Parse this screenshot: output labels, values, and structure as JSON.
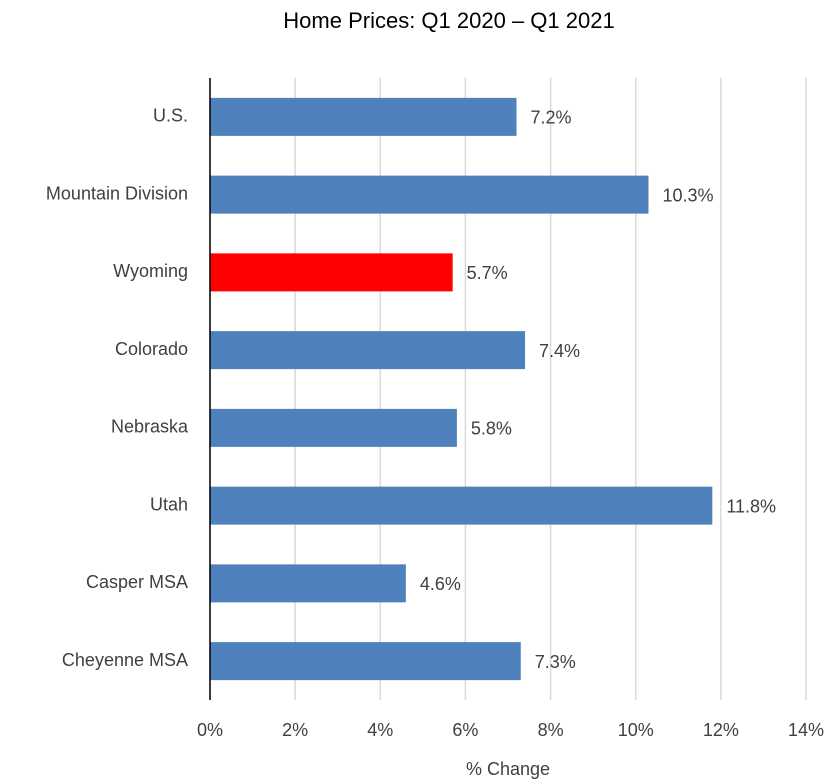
{
  "chart_data": {
    "type": "hbar",
    "title": "Home Prices: Q1 2020 – Q1 2021",
    "x_label": "% Change",
    "categories": [
      "U.S.",
      "Mountain Division",
      "Wyoming",
      "Colorado",
      "Nebraska",
      "Utah",
      "Casper MSA",
      "Cheyenne MSA"
    ],
    "values": [
      7.2,
      10.3,
      5.7,
      7.4,
      5.8,
      11.8,
      4.6,
      7.3
    ],
    "value_labels": [
      "7.2%",
      "10.3%",
      "5.7%",
      "7.4%",
      "5.8%",
      "11.8%",
      "4.6%",
      "7.3%"
    ],
    "colors": [
      "#4f81bd",
      "#4f81bd",
      "#ff0000",
      "#4f81bd",
      "#4f81bd",
      "#4f81bd",
      "#4f81bd",
      "#4f81bd"
    ],
    "xlim": [
      0,
      14
    ],
    "xticks": [
      {
        "value": 0,
        "label": "0%"
      },
      {
        "value": 2,
        "label": "2%"
      },
      {
        "value": 4,
        "label": "4%"
      },
      {
        "value": 6,
        "label": "6%"
      },
      {
        "value": 8,
        "label": "8%"
      },
      {
        "value": 10,
        "label": "10%"
      },
      {
        "value": 12,
        "label": "12%"
      },
      {
        "value": 14,
        "label": "14%"
      }
    ],
    "grid": true
  }
}
